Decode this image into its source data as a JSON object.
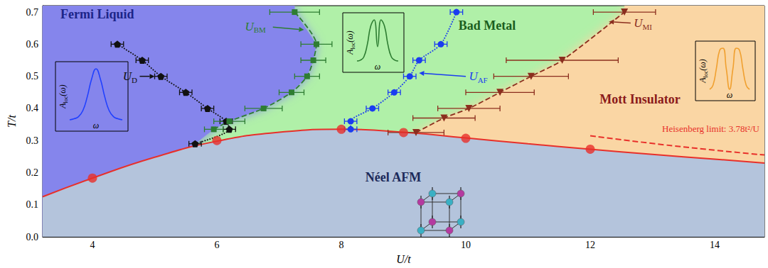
{
  "chart_data": {
    "type": "scatter",
    "x_label": "U/t",
    "y_label": "T/t",
    "xlim": [
      3.2,
      14.8
    ],
    "ylim": [
      0,
      0.72
    ],
    "xticks": [
      4,
      6,
      8,
      10,
      12,
      14
    ],
    "yticks": [
      {
        "value": 0,
        "label": "0.0"
      },
      0.1,
      0.2,
      0.3,
      0.4,
      0.5,
      0.6,
      0.7
    ],
    "grid": false,
    "regions": [
      {
        "label": "Fermi Liquid",
        "color": "#8585ec"
      },
      {
        "label": "Bad Metal",
        "color": "#b0f0a8"
      },
      {
        "label": "Mott Insulator",
        "color": "#fad6a4"
      },
      {
        "label": "Néel AFM",
        "color": "#b4c4dc"
      }
    ],
    "series": [
      {
        "type": "line",
        "label": {
          "main": "U",
          "sub": "D"
        },
        "color": "#111111",
        "marker": "pentagon",
        "line_style": "dotted",
        "x": [
          4.4,
          4.8,
          5.1,
          5.5,
          5.85,
          6.15,
          6.2,
          5.65
        ],
        "y": [
          0.6,
          0.55,
          0.5,
          0.45,
          0.4,
          0.36,
          0.335,
          0.29
        ],
        "xerr": [
          0.1,
          0.1,
          0.1,
          0.1,
          0.1,
          0.1,
          0.1,
          0.1
        ]
      },
      {
        "type": "line",
        "label": {
          "main": "U",
          "sub": "BM"
        },
        "color": "#2e7d32",
        "marker": "square",
        "line_style": "dashed",
        "x": [
          5.95,
          6.2,
          6.75,
          7.2,
          7.45,
          7.55,
          7.6,
          7.25
        ],
        "y": [
          0.335,
          0.36,
          0.4,
          0.45,
          0.5,
          0.55,
          0.6,
          0.7
        ],
        "xerr": [
          0.15,
          0.25,
          0.3,
          0.2,
          0.2,
          0.2,
          0.25,
          0.4
        ]
      },
      {
        "type": "line",
        "label": {
          "main": "U",
          "sub": "AF"
        },
        "color": "#1a3cf0",
        "marker": "circle",
        "line_style": "dotted",
        "x": [
          8.15,
          8.15,
          8.5,
          8.85,
          9.1,
          9.25,
          9.6,
          9.85
        ],
        "y": [
          0.335,
          0.36,
          0.4,
          0.45,
          0.5,
          0.55,
          0.6,
          0.7
        ],
        "xerr": [
          0.1,
          0.1,
          0.1,
          0.1,
          0.1,
          0.1,
          0.1,
          0.1
        ]
      },
      {
        "type": "line",
        "label": {
          "main": "U",
          "sub": "MI"
        },
        "color": "#8b2e1e",
        "marker": "triangle_down",
        "line_style": "dashed",
        "x": [
          9.2,
          9.65,
          10.05,
          10.55,
          11.05,
          11.55,
          12.55
        ],
        "y": [
          0.325,
          0.37,
          0.4,
          0.45,
          0.5,
          0.55,
          0.7
        ],
        "xerr": [
          0.45,
          0.5,
          0.5,
          0.55,
          0.6,
          0.9,
          0.5
        ]
      },
      {
        "type": "scatter",
        "color": "#e8302a",
        "marker": "circle",
        "x": [
          4,
          6,
          8,
          9,
          10,
          12
        ],
        "y": [
          0.183,
          0.3,
          0.335,
          0.325,
          0.307,
          0.273
        ]
      },
      {
        "type": "line",
        "color": "#e8302a",
        "line_style": "solid",
        "x": [
          3.2,
          4,
          5,
          6,
          7,
          8,
          9,
          10,
          11,
          12,
          13,
          14,
          14.8
        ],
        "y": [
          0.125,
          0.183,
          0.248,
          0.298,
          0.326,
          0.335,
          0.326,
          0.308,
          0.29,
          0.273,
          0.257,
          0.242,
          0.23
        ]
      },
      {
        "type": "line",
        "color": "#e8302a",
        "line_style": "dashed",
        "label": "Heisenberg limit: 3.78t²/U",
        "x": [
          12,
          13,
          14,
          14.8
        ],
        "y": [
          0.315,
          0.291,
          0.27,
          0.255
        ]
      }
    ],
    "insets": [
      {
        "color": "#2040ff",
        "y_label": {
          "main": "A",
          "sub": "loc",
          "tail": "(ω)"
        },
        "x_label": "ω",
        "x": [
          -3,
          -2.5,
          -2,
          -1.5,
          -1,
          -0.5,
          0,
          0.5,
          1,
          1.5,
          2,
          2.5,
          3
        ],
        "values": [
          0,
          0.02,
          0.06,
          0.18,
          0.45,
          0.8,
          1.0,
          0.8,
          0.45,
          0.18,
          0.06,
          0.02,
          0
        ]
      },
      {
        "color": "#2e7d32",
        "y_label": {
          "main": "A",
          "sub": "loc",
          "tail": "(ω)"
        },
        "x_label": "ω",
        "x": [
          -3,
          -2.5,
          -2,
          -1.5,
          -1,
          -0.5,
          0,
          0.5,
          1,
          1.5,
          2,
          2.5,
          3
        ],
        "values": [
          0,
          0.02,
          0.1,
          0.4,
          0.85,
          1.0,
          0.35,
          1.0,
          0.85,
          0.4,
          0.1,
          0.02,
          0
        ]
      },
      {
        "color": "#f0a030",
        "y_label": {
          "main": "A",
          "sub": "loc",
          "tail": "(ω)"
        },
        "x_label": "ω",
        "x": [
          -3,
          -2.5,
          -2,
          -1.5,
          -1,
          -0.5,
          0,
          0.5,
          1,
          1.5,
          2,
          2.5,
          3
        ],
        "values": [
          0,
          0.1,
          0.5,
          0.95,
          1.0,
          0.5,
          0,
          0.5,
          1.0,
          0.95,
          0.5,
          0.1,
          0
        ]
      }
    ]
  }
}
